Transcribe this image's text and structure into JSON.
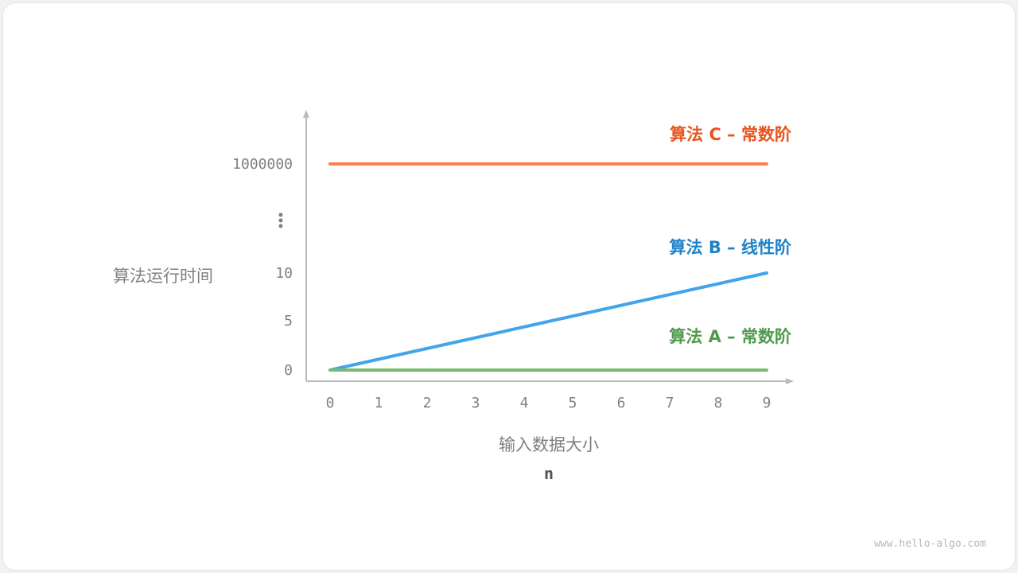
{
  "chart_data": {
    "type": "line",
    "title": "",
    "xlabel": "输入数据大小",
    "xlabel_sub": "n",
    "ylabel": "算法运行时间",
    "x_ticks": [
      "0",
      "1",
      "2",
      "3",
      "4",
      "5",
      "6",
      "7",
      "8",
      "9"
    ],
    "y_ticks": [
      "0",
      "5",
      "10",
      "⋮",
      "1000000"
    ],
    "y_axis_broken": true,
    "grid": false,
    "x": [
      0,
      9
    ],
    "series": [
      {
        "name": "算法 C – 常数阶",
        "values": [
          1000000,
          1000000
        ],
        "color": "#f5814f",
        "label_color": "#e8541d"
      },
      {
        "name": "算法 B – 线性阶",
        "values": [
          0,
          10
        ],
        "color": "#42a5ec",
        "label_color": "#1f83c8"
      },
      {
        "name": "算法 A – 常数阶",
        "values": [
          0,
          0
        ],
        "color": "#7cb874",
        "label_color": "#4f9a4d"
      }
    ],
    "axis_color": "#bbbbbb",
    "text_color": "#808080"
  },
  "watermark": "www.hello-algo.com"
}
